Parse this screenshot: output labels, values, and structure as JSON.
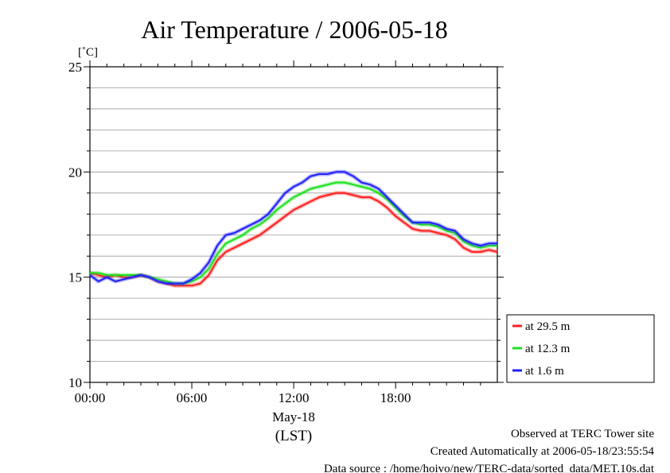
{
  "chart_data": {
    "type": "line",
    "title": "Air Temperature / 2006-05-18",
    "ylabel": "[˚C]",
    "xlabel_date": "May-18",
    "xlabel_tz": "(LST)",
    "ylim": [
      10,
      25
    ],
    "xlim_hours": [
      0,
      23.99
    ],
    "y_ticks": [
      "10",
      "15",
      "20",
      "25"
    ],
    "y_minor_step": 1,
    "x_ticks": [
      "00:00",
      "06:00",
      "12:00",
      "18:00"
    ],
    "grid": true,
    "legend_position": "right",
    "colors": {
      "red": "#ff2020",
      "green": "#20e020",
      "blue": "#2020ff"
    },
    "x": [
      "00:00",
      "00:30",
      "01:00",
      "01:30",
      "02:00",
      "02:30",
      "03:00",
      "03:30",
      "04:00",
      "04:30",
      "05:00",
      "05:30",
      "06:00",
      "06:30",
      "07:00",
      "07:30",
      "08:00",
      "08:30",
      "09:00",
      "09:30",
      "10:00",
      "10:30",
      "11:00",
      "11:30",
      "12:00",
      "12:30",
      "13:00",
      "13:30",
      "14:00",
      "14:30",
      "15:00",
      "15:30",
      "16:00",
      "16:30",
      "17:00",
      "17:30",
      "18:00",
      "18:30",
      "19:00",
      "19:30",
      "20:00",
      "20:30",
      "21:00",
      "21:30",
      "22:00",
      "22:30",
      "23:00",
      "23:30",
      "23:59"
    ],
    "series": [
      {
        "name": "at 29.5 m",
        "color": "#ff2020",
        "values": [
          15.2,
          15.1,
          15.0,
          15.1,
          15.0,
          15.0,
          15.1,
          15.0,
          14.8,
          14.7,
          14.6,
          14.6,
          14.6,
          14.7,
          15.1,
          15.8,
          16.2,
          16.4,
          16.6,
          16.8,
          17.0,
          17.3,
          17.6,
          17.9,
          18.2,
          18.4,
          18.6,
          18.8,
          18.9,
          19.0,
          19.0,
          18.9,
          18.8,
          18.8,
          18.6,
          18.3,
          17.9,
          17.6,
          17.3,
          17.2,
          17.2,
          17.1,
          17.0,
          16.8,
          16.4,
          16.2,
          16.2,
          16.3,
          16.2
        ]
      },
      {
        "name": "at 12.3 m",
        "color": "#20e020",
        "values": [
          15.2,
          15.2,
          15.1,
          15.1,
          15.1,
          15.1,
          15.1,
          15.0,
          14.9,
          14.8,
          14.7,
          14.7,
          14.8,
          15.0,
          15.4,
          16.1,
          16.6,
          16.8,
          17.0,
          17.3,
          17.5,
          17.8,
          18.2,
          18.5,
          18.8,
          19.0,
          19.2,
          19.3,
          19.4,
          19.5,
          19.5,
          19.4,
          19.3,
          19.2,
          19.0,
          18.7,
          18.3,
          17.9,
          17.6,
          17.5,
          17.5,
          17.4,
          17.2,
          17.1,
          16.7,
          16.5,
          16.4,
          16.5,
          16.5
        ]
      },
      {
        "name": "at 1.6 m",
        "color": "#2020ff",
        "values": [
          15.1,
          14.8,
          15.0,
          14.8,
          14.9,
          15.0,
          15.1,
          15.0,
          14.8,
          14.7,
          14.7,
          14.7,
          14.9,
          15.2,
          15.7,
          16.5,
          17.0,
          17.1,
          17.3,
          17.5,
          17.7,
          18.0,
          18.5,
          19.0,
          19.3,
          19.5,
          19.8,
          19.9,
          19.9,
          20.0,
          20.0,
          19.8,
          19.5,
          19.4,
          19.2,
          18.8,
          18.4,
          18.0,
          17.6,
          17.6,
          17.6,
          17.5,
          17.3,
          17.2,
          16.8,
          16.6,
          16.5,
          16.6,
          16.6
        ]
      }
    ]
  },
  "footer": {
    "line1": "Observed at TERC Tower site",
    "line2": "Created Automatically at 2006-05-18/23:55:54",
    "line3": "Data source : /home/hoivo/new/TERC-data/sorted_data/MET.10s.dat"
  }
}
